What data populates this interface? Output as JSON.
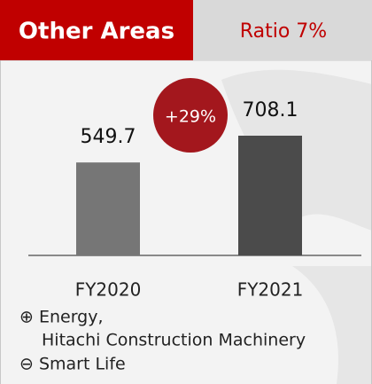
{
  "chart_data": {
    "type": "bar",
    "title": "Other Areas",
    "subtitle": "Ratio 7%",
    "annotation": "+29%",
    "categories": [
      "FY2020",
      "FY2021"
    ],
    "values": [
      549.7,
      708.1
    ],
    "colors": [
      "#767676",
      "#4b4b4b"
    ],
    "notes": [
      "⊕ Energy,",
      "Hitachi Construction Machinery",
      "⊖ Smart Life"
    ]
  }
}
